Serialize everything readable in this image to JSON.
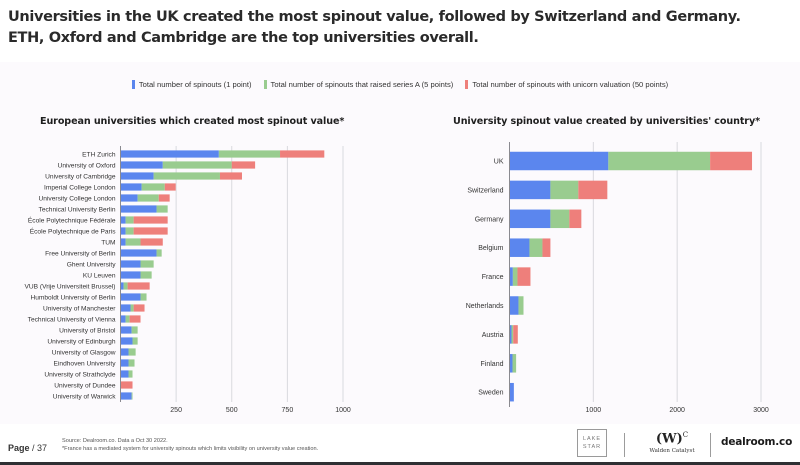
{
  "header": {
    "title_line1": "Universities in the UK created the most spinout value, followed by Switzerland and Germany.",
    "title_line2": "ETH, Oxford and Cambridge are the top universities overall."
  },
  "legend": [
    {
      "label": "Total number of spinouts (1 point)",
      "color": "#5b86ee"
    },
    {
      "label": "Total number of spinouts that raised series A (5 points)",
      "color": "#99cc8f"
    },
    {
      "label": "Total number of spinouts with unicorn valuation (50 points)",
      "color": "#ee7f7b"
    }
  ],
  "chart_data": [
    {
      "type": "bar",
      "orientation": "horizontal",
      "stacked": true,
      "title": "European universities which created most spinout value*",
      "xlabel": "",
      "ylabel": "",
      "xlim": [
        0,
        1000
      ],
      "xticks": [
        "250",
        "500",
        "750",
        "1000"
      ],
      "xtick_values": [
        250,
        500,
        750,
        1000
      ],
      "grid": true,
      "legend": "top-center",
      "categories": [
        "ETH Zurich",
        "University of Oxford",
        "University of Cambridge",
        "Imperial College London",
        "University College London",
        "Technical University Berlin",
        "École Polytechnique Fédérale",
        "École Polytechnique de Paris",
        "TUM",
        "Free University of Berlin",
        "Ghent University",
        "KU Leuven",
        "VUB (Vrije Universiteit Brussel)",
        "Humboldt University of Berlin",
        "University of Manchester",
        "Technical University of Vienna",
        "University of Bristol",
        "University of Edinburgh",
        "University of Glasgow",
        "Eindhoven University",
        "University of Strathclyde",
        "University of Dundee",
        "University of Warwick"
      ],
      "series": [
        {
          "name": "Total number of spinouts (1 point)",
          "values": [
            442,
            190,
            149,
            95,
            77,
            162,
            23,
            23,
            23,
            162,
            90,
            90,
            14,
            90,
            45,
            23,
            50,
            54,
            36,
            36,
            36,
            0,
            50
          ]
        },
        {
          "name": "Total number of spinouts that raised series A (5 points)",
          "values": [
            275,
            310,
            298,
            104,
            95,
            50,
            36,
            36,
            67,
            23,
            59,
            50,
            18,
            27,
            14,
            18,
            27,
            23,
            32,
            27,
            18,
            0,
            4
          ]
        },
        {
          "name": "Total number of spinouts with unicorn valuation (50 points)",
          "values": [
            199,
            105,
            99,
            49,
            49,
            0,
            153,
            153,
            100,
            0,
            0,
            0,
            99,
            0,
            49,
            49,
            0,
            0,
            0,
            0,
            0,
            54,
            0
          ]
        }
      ]
    },
    {
      "type": "bar",
      "orientation": "horizontal",
      "stacked": true,
      "title": "University spinout value created by universities' country*",
      "xlabel": "",
      "ylabel": "",
      "xlim": [
        0,
        3000
      ],
      "xticks": [
        "1000",
        "2000",
        "3000"
      ],
      "xtick_values": [
        1000,
        2000,
        3000
      ],
      "grid": true,
      "legend": "top-center",
      "categories": [
        "UK",
        "Switzerland",
        "Germany",
        "Belgium",
        "France",
        "Netherlands",
        "Austria",
        "Finland",
        "Sweden"
      ],
      "series": [
        {
          "name": "Total number of spinouts (1 point)",
          "values": [
            1179,
            488,
            488,
            238,
            40,
            107,
            24,
            36,
            52
          ]
        },
        {
          "name": "Total number of spinouts that raised series A (5 points)",
          "values": [
            1214,
            333,
            226,
            155,
            55,
            60,
            20,
            43,
            0
          ]
        },
        {
          "name": "Total number of spinouts with unicorn valuation (50 points)",
          "values": [
            500,
            346,
            143,
            95,
            155,
            0,
            55,
            0,
            0
          ]
        }
      ]
    }
  ],
  "footer": {
    "page_label": "Page",
    "page_number": "/ 37",
    "source": "Source: Dealroom.co.  Data a Oct 30 2022.",
    "footnote": "*France has a mediated system for university spinouts which limits visibility on university value creation.",
    "logo_lakestar_line1": "LAKE",
    "logo_lakestar_line2": "STAR",
    "logo_walden_mark": "(W)",
    "logo_walden_sup": "C",
    "logo_walden_name": "Walden Catalyst",
    "logo_dealroom": "dealroom.co"
  }
}
